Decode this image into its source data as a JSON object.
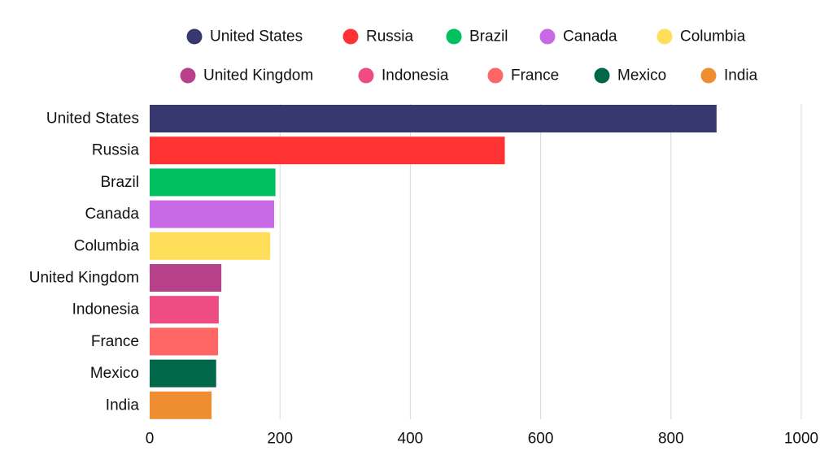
{
  "chart_data": {
    "type": "bar",
    "orientation": "horizontal",
    "categories": [
      "United States",
      "Russia",
      "Brazil",
      "Canada",
      "Columbia",
      "United Kingdom",
      "Indonesia",
      "France",
      "Mexico",
      "India"
    ],
    "values": [
      870,
      545,
      193,
      191,
      185,
      110,
      106,
      105,
      102,
      95
    ],
    "colors": [
      "#37386e",
      "#ff3333",
      "#00c060",
      "#c86ae6",
      "#ffde59",
      "#b8418c",
      "#ee4d84",
      "#ff6666",
      "#006848",
      "#ef8e30"
    ],
    "legend": {
      "placement": "top",
      "entries": [
        "United States",
        "Russia",
        "Brazil",
        "Canada",
        "Columbia",
        "United Kingdom",
        "Indonesia",
        "France",
        "Mexico",
        "India"
      ]
    },
    "xlim": [
      0,
      1000
    ],
    "xticks": [
      0,
      200,
      400,
      600,
      800,
      1000
    ],
    "grid": true,
    "title": "",
    "xlabel": "",
    "ylabel": ""
  }
}
